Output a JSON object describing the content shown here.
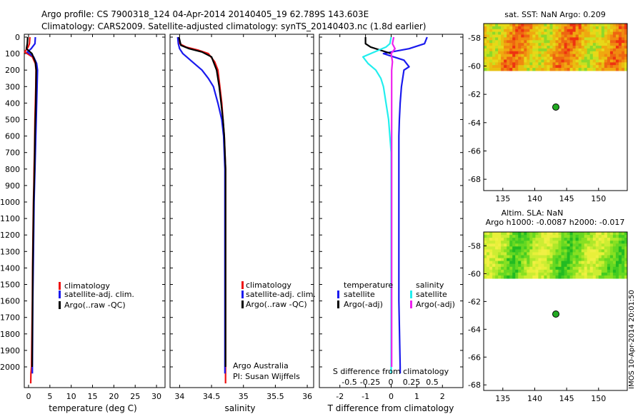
{
  "header": {
    "line1": "Argo profile: CS 7900318_124 04-Apr-2014 20140405_19 62.789S 143.603E",
    "line2": "Climatology: CARS2009. Satellite-adjusted climatology: synTS_20140403.nc (1.8d earlier)"
  },
  "depth_ticks": [
    "0",
    "100",
    "200",
    "300",
    "400",
    "500",
    "600",
    "700",
    "800",
    "900",
    "1000",
    "1100",
    "1200",
    "1300",
    "1400",
    "1500",
    "1600",
    "1700",
    "1800",
    "1900",
    "2000"
  ],
  "panels": {
    "temperature": {
      "xlabel": "temperature (deg C)",
      "xticks": [
        "0",
        "5",
        "10",
        "15",
        "20",
        "25",
        "30"
      ],
      "legend": [
        "climatology",
        "satellite-adj. clim.",
        "Argo(..raw -QC)"
      ]
    },
    "salinity": {
      "xlabel": "salinity",
      "xticks": [
        "34",
        "34.5",
        "35",
        "35.5",
        "36"
      ],
      "legend": [
        "climatology",
        "satellite-adj. clim.",
        "Argo(..raw -QC)"
      ],
      "note1": "Argo Australia",
      "note2": "PI: Susan Wijffels"
    },
    "difference": {
      "xlabel": "T difference from climatology",
      "toplabel": "S difference from climatology",
      "xticks_t": [
        "-2",
        "-1",
        "0",
        "1",
        "2"
      ],
      "xticks_s": [
        "-0.5",
        "-0.25",
        "0",
        "0.25",
        "0.5"
      ],
      "legend_head_t": "temperature",
      "legend_head_s": "salinity",
      "legend_t": [
        "satellite",
        "Argo(-adj)"
      ],
      "legend_s": [
        "satellite",
        "Argo(-adj)"
      ]
    },
    "sst_map": {
      "title": "sat. SST: NaN Argo: 0.209",
      "yticks": [
        "-58",
        "-60",
        "-62",
        "-64",
        "-66",
        "-68"
      ],
      "xticks": [
        "135",
        "140",
        "145",
        "150"
      ]
    },
    "sla_map": {
      "title1": "Altim. SLA: NaN",
      "title2": "Argo h1000: -0.0087 h2000: -0.017",
      "yticks": [
        "-58",
        "-60",
        "-62",
        "-64",
        "-66",
        "-68"
      ],
      "xticks": [
        "135",
        "140",
        "145",
        "150"
      ]
    },
    "credit": "IMOS 10-Apr-2014 20:01:50"
  },
  "colors": {
    "climatology": "#ee1111",
    "satellite": "#1a1aee",
    "argo": "#000000",
    "sal_satellite": "#22eeee",
    "sal_argo": "#ee22ee",
    "marker": "#22aa22"
  },
  "chart_data": [
    {
      "type": "line",
      "title": "",
      "xlabel": "temperature (deg C)",
      "ylabel": "",
      "xlim": [
        -1,
        32
      ],
      "ylim": [
        2100,
        0
      ],
      "y_axis_reversed": true,
      "series": [
        {
          "name": "climatology",
          "x": [
            0.3,
            0.2,
            -0.1,
            -0.9,
            0.9,
            1.6,
            1.75,
            1.7,
            1.6,
            1.5,
            1.45,
            1.4,
            1.3,
            1.25,
            1.15,
            1.05,
            0.95,
            0.9,
            0.8,
            0.7,
            0.55,
            0.5
          ],
          "y": [
            0,
            40,
            60,
            90,
            120,
            160,
            200,
            300,
            400,
            500,
            600,
            700,
            800,
            900,
            1000,
            1200,
            1400,
            1600,
            1800,
            2000,
            2040,
            2100
          ]
        },
        {
          "name": "satellite-adj. clim.",
          "x": [
            1.6,
            1.5,
            0.6,
            -0.3,
            1.2,
            1.9,
            2.1,
            2.0,
            1.9,
            1.8,
            1.7,
            1.6,
            1.5,
            1.4,
            1.3,
            1.2,
            1.1,
            1.0,
            0.95,
            0.9,
            0.9
          ],
          "y": [
            0,
            40,
            70,
            90,
            120,
            160,
            200,
            300,
            400,
            500,
            600,
            700,
            800,
            900,
            1000,
            1200,
            1400,
            1600,
            1800,
            2000,
            2040
          ]
        },
        {
          "name": "Argo(..raw -QC)",
          "x": [
            -0.2,
            -0.3,
            -0.5,
            0.8,
            1.6,
            1.8,
            1.75,
            1.7,
            1.6,
            1.5,
            1.45,
            1.4,
            1.3,
            1.2,
            1.1,
            1.0,
            0.95,
            0.9,
            0.85
          ],
          "y": [
            0,
            40,
            70,
            100,
            150,
            200,
            300,
            400,
            500,
            600,
            700,
            800,
            900,
            1000,
            1200,
            1400,
            1600,
            1800,
            2000
          ]
        }
      ]
    },
    {
      "type": "line",
      "title": "",
      "xlabel": "salinity",
      "ylabel": "",
      "xlim": [
        33.85,
        36.1
      ],
      "ylim": [
        2100,
        0
      ],
      "y_axis_reversed": true,
      "series": [
        {
          "name": "climatology",
          "x": [
            33.98,
            34.0,
            34.1,
            34.3,
            34.45,
            34.55,
            34.6,
            34.63,
            34.66,
            34.68,
            34.7,
            34.71,
            34.72,
            34.72,
            34.72,
            34.72,
            34.72,
            34.72,
            34.72
          ],
          "y": [
            0,
            40,
            60,
            80,
            100,
            150,
            200,
            300,
            400,
            500,
            600,
            700,
            800,
            900,
            1000,
            1200,
            1400,
            1600,
            2100
          ]
        },
        {
          "name": "satellite-adj. clim.",
          "x": [
            33.97,
            33.98,
            34.0,
            34.05,
            34.2,
            34.35,
            34.45,
            34.53,
            34.6,
            34.66,
            34.69,
            34.7,
            34.71,
            34.71,
            34.71,
            34.71,
            34.71,
            34.71,
            34.71
          ],
          "y": [
            0,
            40,
            70,
            100,
            150,
            200,
            250,
            300,
            400,
            500,
            600,
            700,
            800,
            900,
            1000,
            1200,
            1400,
            1600,
            2040
          ]
        },
        {
          "name": "Argo(..raw -QC)",
          "x": [
            33.99,
            34.02,
            34.15,
            34.35,
            34.5,
            34.58,
            34.62,
            34.65,
            34.68,
            34.7,
            34.71,
            34.72,
            34.72,
            34.72,
            34.72,
            34.72,
            34.72
          ],
          "y": [
            0,
            50,
            70,
            90,
            120,
            200,
            300,
            400,
            500,
            600,
            700,
            800,
            900,
            1000,
            1200,
            1400,
            2000
          ]
        }
      ]
    },
    {
      "type": "line",
      "title": "",
      "xlabel": "T difference from climatology",
      "ylabel": "",
      "xlim": [
        -2.8,
        2.8
      ],
      "ylim": [
        2100,
        0
      ],
      "y_axis_reversed": true,
      "series": [
        {
          "name": "temperature satellite",
          "x": [
            1.4,
            1.3,
            0.7,
            0.0,
            -0.3,
            0.5,
            0.7,
            0.5,
            0.4,
            0.35,
            0.32,
            0.3,
            0.3,
            0.3,
            0.3,
            0.3,
            0.3,
            0.3,
            0.3,
            0.35,
            0.35
          ],
          "y": [
            0,
            40,
            70,
            90,
            100,
            140,
            180,
            200,
            300,
            400,
            500,
            600,
            700,
            800,
            900,
            1000,
            1200,
            1400,
            1600,
            2000,
            2040
          ]
        },
        {
          "name": "temperature Argo(-adj)",
          "x": [
            -1.0,
            -1.0,
            -0.8,
            -0.4,
            0.0
          ],
          "y": [
            0,
            40,
            60,
            80,
            100
          ]
        },
        {
          "name": "salinity satellite",
          "x": [
            0.0,
            -0.05,
            -0.2,
            -1.1,
            -0.9,
            -0.6,
            -0.4,
            -0.3,
            -0.2,
            -0.1,
            -0.05,
            0.0,
            0.0,
            0.0,
            0.0,
            0.0,
            0.0,
            0.0,
            0.0
          ],
          "y": [
            0,
            40,
            60,
            120,
            160,
            200,
            250,
            300,
            400,
            500,
            600,
            700,
            800,
            900,
            1000,
            1200,
            1400,
            1600,
            2040
          ]
        },
        {
          "name": "salinity Argo(-adj)",
          "x": [
            0.1,
            0.05,
            0.15,
            0.0,
            0.05,
            0.02,
            0.02,
            0.02,
            0.02,
            0.02,
            0.02,
            0.02,
            0.02,
            0.02,
            0.02,
            0.02,
            0.02
          ],
          "y": [
            0,
            40,
            70,
            100,
            150,
            200,
            300,
            400,
            500,
            600,
            700,
            800,
            900,
            1000,
            1200,
            1400,
            2000
          ]
        }
      ]
    }
  ]
}
